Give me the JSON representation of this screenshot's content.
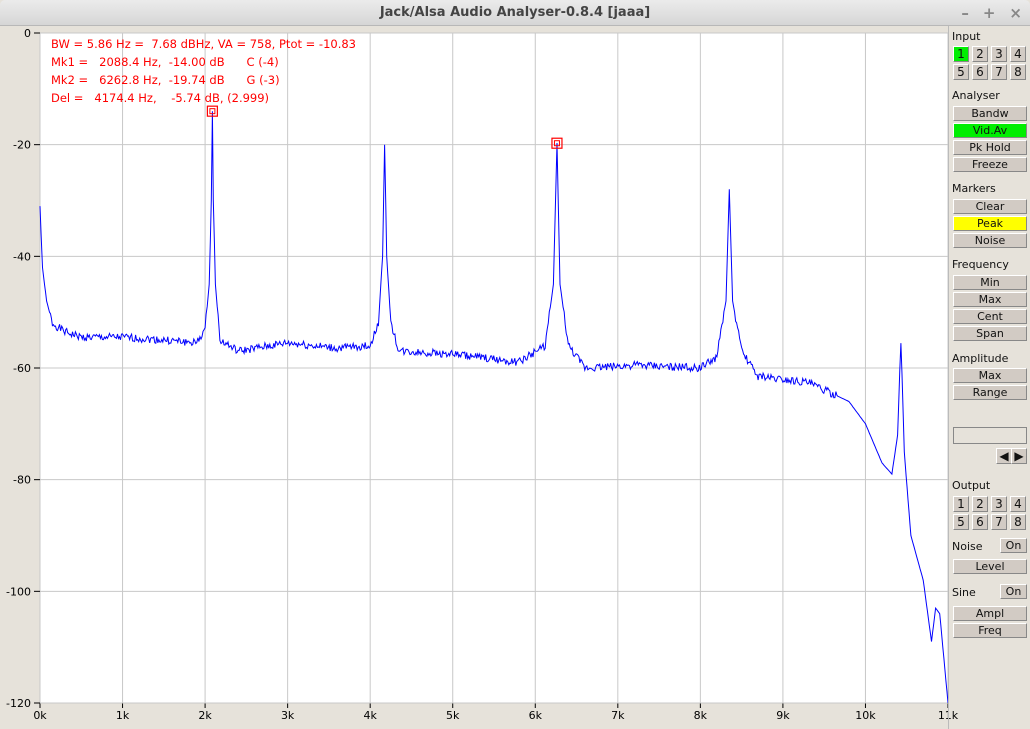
{
  "window": {
    "title": "Jack/Alsa Audio Analyser-0.8.4  [jaaa]",
    "controls": [
      "–",
      "+",
      "×"
    ]
  },
  "readout": [
    "BW = 5.86 Hz =  7.68 dBHz, VA = 758, Ptot = -10.83",
    "Mk1 =   2088.4 Hz,  -14.00 dB      C (-4)",
    "Mk2 =   6262.8 Hz,  -19.74 dB      G (-3)",
    "Del =   4174.4 Hz,    -5.74 dB, (2.999)"
  ],
  "panel": {
    "input_label": "Input",
    "inputs": [
      "1",
      "2",
      "3",
      "4",
      "5",
      "6",
      "7",
      "8"
    ],
    "input_active": "1",
    "analyser_label": "Analyser",
    "analyser": [
      "Bandw",
      "Vid.Av",
      "Pk Hold",
      "Freeze"
    ],
    "analyser_active": "Vid.Av",
    "markers_label": "Markers",
    "markers": [
      "Clear",
      "Peak",
      "Noise"
    ],
    "markers_active": "Peak",
    "frequency_label": "Frequency",
    "frequency": [
      "Min",
      "Max",
      "Cent",
      "Span"
    ],
    "amplitude_label": "Amplitude",
    "amplitude": [
      "Max",
      "Range"
    ],
    "entry_value": "",
    "arrows": [
      "◀",
      "▶"
    ],
    "output_label": "Output",
    "outputs": [
      "1",
      "2",
      "3",
      "4",
      "5",
      "6",
      "7",
      "8"
    ],
    "noise_label": "Noise",
    "noise_on": "On",
    "noise_level": "Level",
    "sine_label": "Sine",
    "sine_on": "On",
    "sine": [
      "Ampl",
      "Freq"
    ]
  },
  "colors": {
    "trace": "#0000ff",
    "readout": "#ff0000",
    "active_green": "#00ee00",
    "active_yellow": "#ffff00"
  },
  "chart_data": {
    "type": "line",
    "xlim": [
      0,
      11000
    ],
    "ylim": [
      -120,
      0
    ],
    "grid": true,
    "xticks": [
      0,
      1000,
      2000,
      3000,
      4000,
      5000,
      6000,
      7000,
      8000,
      9000,
      10000,
      11000
    ],
    "xtick_labels": [
      "0k",
      "1k",
      "2k",
      "3k",
      "4k",
      "5k",
      "6k",
      "7k",
      "8k",
      "9k",
      "10k",
      "11k"
    ],
    "yticks": [
      0,
      -20,
      -40,
      -60,
      -80,
      -100,
      -120
    ],
    "ytick_labels": [
      "0",
      "-20",
      "-40",
      "-60",
      "-80",
      "-100",
      "-120"
    ],
    "markers": [
      {
        "x": 2088.4,
        "y": -14.0
      },
      {
        "x": 6262.8,
        "y": -19.74
      }
    ],
    "series": [
      {
        "points": [
          [
            0,
            -31
          ],
          [
            30,
            -42
          ],
          [
            80,
            -48
          ],
          [
            150,
            -52
          ],
          [
            300,
            -53.5
          ],
          [
            500,
            -54.5
          ],
          [
            1000,
            -54.5
          ],
          [
            1500,
            -55
          ],
          [
            1900,
            -55.5
          ],
          [
            2000,
            -53
          ],
          [
            2050,
            -45
          ],
          [
            2075,
            -30
          ],
          [
            2088,
            -14
          ],
          [
            2100,
            -30
          ],
          [
            2125,
            -45
          ],
          [
            2180,
            -55
          ],
          [
            2400,
            -57
          ],
          [
            3000,
            -55.5
          ],
          [
            3600,
            -56.5
          ],
          [
            4000,
            -56
          ],
          [
            4100,
            -52
          ],
          [
            4150,
            -40
          ],
          [
            4175,
            -20
          ],
          [
            4200,
            -40
          ],
          [
            4250,
            -52
          ],
          [
            4350,
            -57
          ],
          [
            5000,
            -57.5
          ],
          [
            5800,
            -59
          ],
          [
            6120,
            -56
          ],
          [
            6220,
            -45
          ],
          [
            6263,
            -19.7
          ],
          [
            6300,
            -45
          ],
          [
            6400,
            -56
          ],
          [
            6600,
            -60
          ],
          [
            7200,
            -59.5
          ],
          [
            8000,
            -60
          ],
          [
            8200,
            -58
          ],
          [
            8310,
            -48
          ],
          [
            8350,
            -28
          ],
          [
            8390,
            -48
          ],
          [
            8500,
            -57
          ],
          [
            8700,
            -61.5
          ],
          [
            9300,
            -62.5
          ],
          [
            9800,
            -66
          ],
          [
            10000,
            -70
          ],
          [
            10200,
            -77
          ],
          [
            10320,
            -79
          ],
          [
            10390,
            -72
          ],
          [
            10430,
            -55
          ],
          [
            10470,
            -75
          ],
          [
            10550,
            -90
          ],
          [
            10700,
            -98
          ],
          [
            10800,
            -109
          ],
          [
            10850,
            -103
          ],
          [
            10900,
            -104
          ],
          [
            10950,
            -112
          ],
          [
            11000,
            -120
          ]
        ]
      }
    ]
  }
}
